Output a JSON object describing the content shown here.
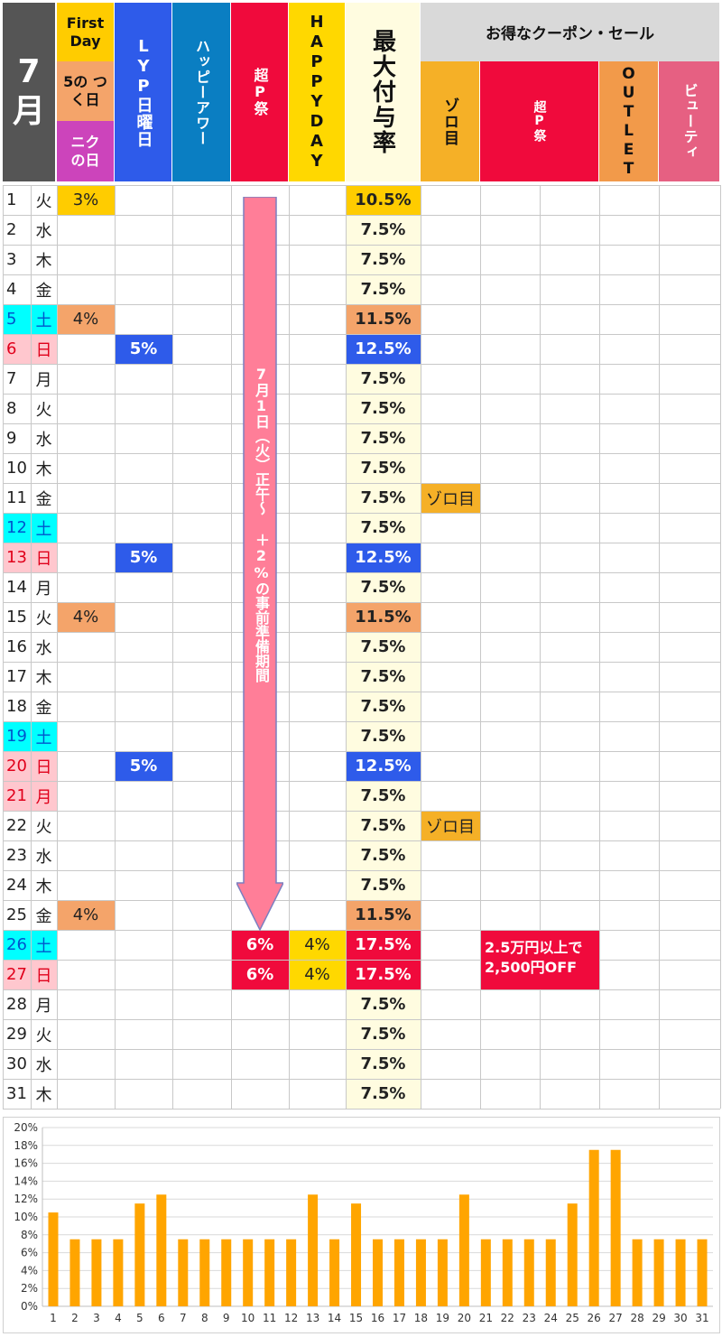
{
  "header": {
    "month": "7",
    "month_unit": "月",
    "first_day": "First Day",
    "five_day": "5の つく日",
    "niku_day": "ニク の日",
    "lyp_sunday": "LYP日曜日",
    "happy_hour": "ハッピーアワー",
    "super_p": "超P祭",
    "happy_day": "HAPPYDAY",
    "max_rate": "最大付与率",
    "coupon_group": "お得なクーポン・セール",
    "zoro": "ゾロ目",
    "super_p2": "超P祭",
    "outlet": "OUTLET",
    "beauty": "ビューティ"
  },
  "days": [
    {
      "d": "1",
      "w": "火",
      "first": "3%",
      "max": "10.5%"
    },
    {
      "d": "2",
      "w": "水",
      "max": "7.5%"
    },
    {
      "d": "3",
      "w": "木",
      "max": "7.5%"
    },
    {
      "d": "4",
      "w": "金",
      "max": "7.5%"
    },
    {
      "d": "5",
      "w": "土",
      "five": "4%",
      "max": "11.5%",
      "type": "sat"
    },
    {
      "d": "6",
      "w": "日",
      "lyp": "5%",
      "max": "12.5%",
      "type": "sun"
    },
    {
      "d": "7",
      "w": "月",
      "max": "7.5%"
    },
    {
      "d": "8",
      "w": "火",
      "max": "7.5%"
    },
    {
      "d": "9",
      "w": "水",
      "max": "7.5%"
    },
    {
      "d": "10",
      "w": "木",
      "max": "7.5%"
    },
    {
      "d": "11",
      "w": "金",
      "max": "7.5%",
      "zoro": "ゾロ目"
    },
    {
      "d": "12",
      "w": "土",
      "max": "7.5%",
      "type": "sat"
    },
    {
      "d": "13",
      "w": "日",
      "lyp": "5%",
      "max": "12.5%",
      "type": "sun"
    },
    {
      "d": "14",
      "w": "月",
      "max": "7.5%"
    },
    {
      "d": "15",
      "w": "火",
      "five": "4%",
      "max": "11.5%"
    },
    {
      "d": "16",
      "w": "水",
      "max": "7.5%"
    },
    {
      "d": "17",
      "w": "木",
      "max": "7.5%"
    },
    {
      "d": "18",
      "w": "金",
      "max": "7.5%"
    },
    {
      "d": "19",
      "w": "土",
      "max": "7.5%",
      "type": "sat"
    },
    {
      "d": "20",
      "w": "日",
      "lyp": "5%",
      "max": "12.5%",
      "type": "sun"
    },
    {
      "d": "21",
      "w": "月",
      "max": "7.5%",
      "type": "sun"
    },
    {
      "d": "22",
      "w": "火",
      "max": "7.5%",
      "zoro": "ゾロ目"
    },
    {
      "d": "23",
      "w": "水",
      "max": "7.5%"
    },
    {
      "d": "24",
      "w": "木",
      "max": "7.5%"
    },
    {
      "d": "25",
      "w": "金",
      "five": "4%",
      "max": "11.5%"
    },
    {
      "d": "26",
      "w": "土",
      "superp": "6%",
      "happy": "4%",
      "max": "17.5%",
      "type": "sat"
    },
    {
      "d": "27",
      "w": "日",
      "superp": "6%",
      "happy": "4%",
      "max": "17.5%",
      "type": "sun"
    },
    {
      "d": "28",
      "w": "月",
      "max": "7.5%"
    },
    {
      "d": "29",
      "w": "火",
      "max": "7.5%"
    },
    {
      "d": "30",
      "w": "水",
      "max": "7.5%"
    },
    {
      "d": "31",
      "w": "木",
      "max": "7.5%"
    }
  ],
  "arrow_text": "7月1日（火）正午～ ＋2%の事前準備期間",
  "coupon_note_line1": "2.5万円以上で",
  "coupon_note_line2": "2,500円OFF",
  "colors": {
    "header_dark": "#555555",
    "first_day": "#FFCC00",
    "five_day": "#F4A46A",
    "niku_day": "#CC44BB",
    "lyp": "#2E5BEA",
    "happy_hour": "#0A7EC2",
    "super_p": "#F00A3C",
    "happy_day": "#FFD800",
    "max_rate_bg": "#FFFCE0",
    "coupon_header": "#D9D9D9",
    "zoro": "#F5B027",
    "outlet": "#F29A4A",
    "beauty": "#E66082",
    "sat": "#00FFFF",
    "sun": "#FFC7CE",
    "arrow": "#FF7E98",
    "bar": "#FFA500"
  },
  "chart_data": {
    "type": "bar",
    "categories": [
      "1",
      "2",
      "3",
      "4",
      "5",
      "6",
      "7",
      "8",
      "9",
      "10",
      "11",
      "12",
      "13",
      "14",
      "15",
      "16",
      "17",
      "18",
      "19",
      "20",
      "21",
      "22",
      "23",
      "24",
      "25",
      "26",
      "27",
      "28",
      "29",
      "30",
      "31"
    ],
    "values": [
      10.5,
      7.5,
      7.5,
      7.5,
      11.5,
      12.5,
      7.5,
      7.5,
      7.5,
      7.5,
      7.5,
      7.5,
      12.5,
      7.5,
      11.5,
      7.5,
      7.5,
      7.5,
      7.5,
      12.5,
      7.5,
      7.5,
      7.5,
      7.5,
      11.5,
      17.5,
      17.5,
      7.5,
      7.5,
      7.5,
      7.5
    ],
    "ylim": [
      0,
      20
    ],
    "yticks": [
      "0%",
      "2%",
      "4%",
      "6%",
      "8%",
      "10%",
      "12%",
      "14%",
      "16%",
      "18%",
      "20%"
    ],
    "grid": true,
    "legend": "none"
  }
}
